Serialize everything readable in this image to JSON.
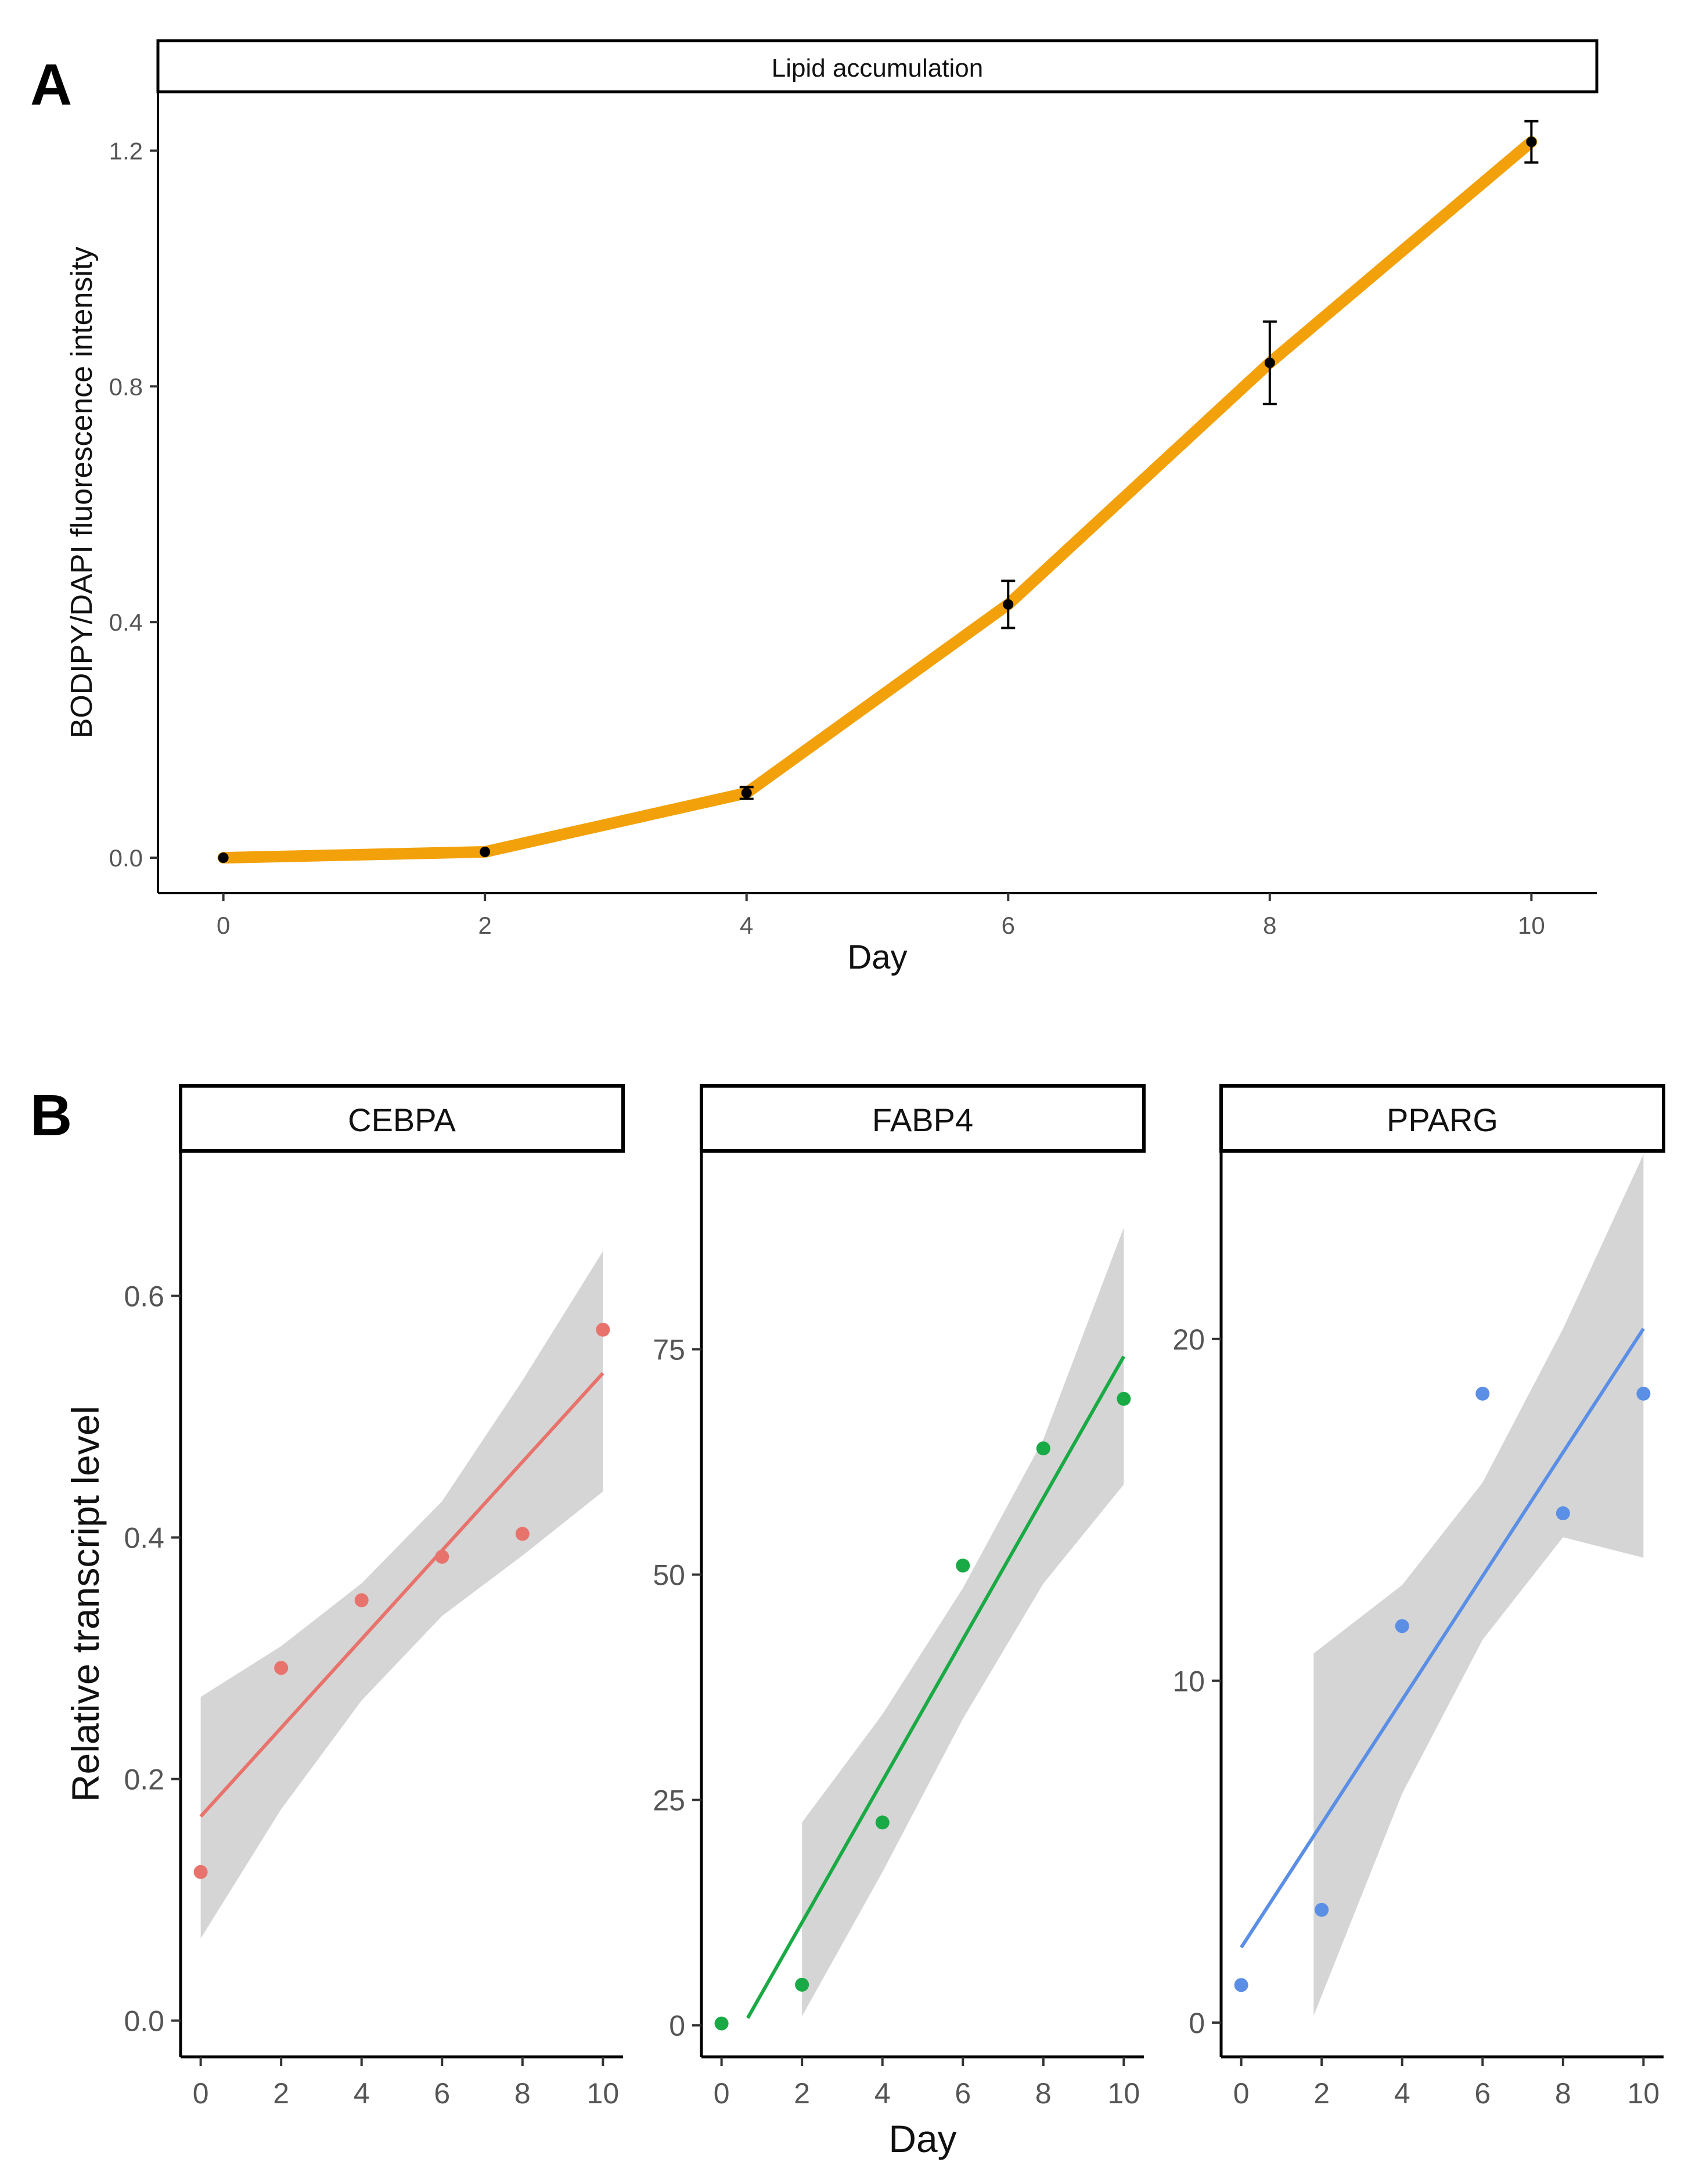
{
  "panels": {
    "a_letter": "A",
    "b_letter": "B"
  },
  "chart_data": [
    {
      "type": "line",
      "panel": "A",
      "strip": "Lipid  accumulation",
      "xlabel": "Day",
      "ylabel": "BODIPY/DAPI fluorescence intensity",
      "xlim": [
        -0.5,
        10.5
      ],
      "ylim": [
        -0.06,
        1.3
      ],
      "xticks": [
        0,
        2,
        4,
        6,
        8,
        10
      ],
      "yticks": [
        0.0,
        0.4,
        0.8,
        1.2
      ],
      "ytick_labels": [
        "0.0",
        "0.4",
        "0.8",
        "1.2"
      ],
      "color": "#F2A10A",
      "points": [
        {
          "x": 0,
          "y": 0.0,
          "err": 0.0
        },
        {
          "x": 2,
          "y": 0.01,
          "err": 0.0
        },
        {
          "x": 4,
          "y": 0.11,
          "err": 0.01
        },
        {
          "x": 6,
          "y": 0.43,
          "err": 0.04
        },
        {
          "x": 8,
          "y": 0.84,
          "err": 0.07
        },
        {
          "x": 10,
          "y": 1.215,
          "err": 0.035
        }
      ]
    },
    {
      "type": "scatter",
      "panel": "B",
      "strip": "CEBPA",
      "color": "#E8736C",
      "ylabel": "Relative transcript level",
      "xlim": [
        -0.5,
        10.5
      ],
      "ylim": [
        -0.03,
        0.72
      ],
      "xticks": [
        0,
        2,
        4,
        6,
        8,
        10
      ],
      "yticks": [
        0.0,
        0.2,
        0.4,
        0.6
      ],
      "ytick_labels": [
        "0.0",
        "0.2",
        "0.4",
        "0.6"
      ],
      "x": [
        0,
        2,
        4,
        6,
        8,
        10
      ],
      "y": [
        0.123,
        0.292,
        0.348,
        0.384,
        0.403,
        0.572
      ],
      "fit": {
        "intercept": 0.169,
        "slope": 0.0367,
        "x_range": [
          0,
          10
        ]
      },
      "band": {
        "x": [
          0,
          2,
          4,
          6,
          8,
          10
        ],
        "lower": [
          0.068,
          0.175,
          0.265,
          0.335,
          0.385,
          0.438
        ],
        "upper": [
          0.268,
          0.31,
          0.362,
          0.43,
          0.53,
          0.637
        ]
      }
    },
    {
      "type": "scatter",
      "panel": "B",
      "strip": "FABP4",
      "color": "#1AAA45",
      "xlabel": "Day",
      "xlim": [
        -0.5,
        10.5
      ],
      "ylim": [
        -3.5,
        97
      ],
      "xticks": [
        0,
        2,
        4,
        6,
        8,
        10
      ],
      "yticks": [
        0,
        25,
        50,
        75
      ],
      "ytick_labels": [
        "0",
        "25",
        "50",
        "75"
      ],
      "x": [
        0,
        2,
        4,
        6,
        8,
        10
      ],
      "y": [
        0.2,
        4.5,
        22.5,
        51,
        64,
        69.5
      ],
      "fit": {
        "intercept": -4.3,
        "slope": 7.85,
        "x_range": [
          0.65,
          10
        ]
      },
      "band": {
        "x": [
          2,
          4,
          6,
          8,
          10
        ],
        "lower": [
          1.0,
          17.0,
          34.0,
          49.0,
          60.0
        ],
        "upper": [
          22.5,
          34.5,
          48.5,
          65.0,
          88.5
        ]
      }
    },
    {
      "type": "scatter",
      "panel": "B",
      "strip": "PPARG",
      "color": "#5B8FE6",
      "xlim": [
        -0.5,
        10.5
      ],
      "ylim": [
        -1,
        25.5
      ],
      "xticks": [
        0,
        2,
        4,
        6,
        8,
        10
      ],
      "yticks": [
        0,
        10,
        20
      ],
      "ytick_labels": [
        "0",
        "10",
        "20"
      ],
      "x": [
        0,
        2,
        4,
        6,
        8,
        10
      ],
      "y": [
        1.1,
        3.3,
        11.6,
        18.4,
        14.9,
        18.4
      ],
      "fit": {
        "intercept": 2.2,
        "slope": 1.81,
        "x_range": [
          0,
          10
        ]
      },
      "band": {
        "x": [
          1.8,
          4,
          6,
          8,
          10
        ],
        "lower": [
          0.2,
          6.7,
          11.2,
          14.2,
          13.6
        ],
        "upper": [
          10.8,
          12.8,
          15.8,
          20.3,
          25.4
        ]
      }
    }
  ]
}
